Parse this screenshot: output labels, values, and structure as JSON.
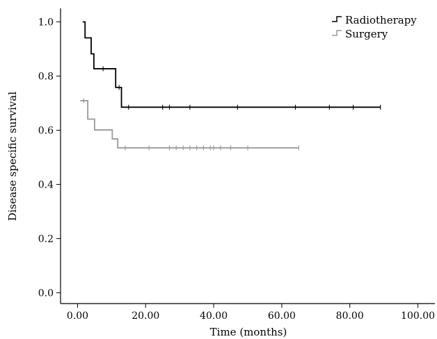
{
  "chart_data": {
    "type": "line",
    "subtype": "kaplan-meier-step",
    "xlabel": "Time (months)",
    "ylabel": "Disease specific survival",
    "xlim": [
      -5,
      105
    ],
    "ylim": [
      -0.04,
      1.05
    ],
    "xticks": [
      0,
      20,
      40,
      60,
      80,
      100
    ],
    "xtick_labels": [
      "0.00",
      "20.00",
      "40.00",
      "60.00",
      "80.00",
      "100.00"
    ],
    "yticks": [
      0,
      0.2,
      0.4,
      0.6,
      0.8,
      1.0
    ],
    "ytick_labels": [
      "0.0",
      "0.2",
      "0.4",
      "0.6",
      "0.8",
      "1.0"
    ],
    "grid": false,
    "legend_position": "top-right",
    "series": [
      {
        "name": "Radiotherapy",
        "color": "#000000",
        "steps": [
          {
            "t": 1.5,
            "s": 1.0
          },
          {
            "t": 2.2,
            "s": 0.941
          },
          {
            "t": 4.0,
            "s": 0.882
          },
          {
            "t": 4.8,
            "s": 0.827
          },
          {
            "t": 11.2,
            "s": 0.758
          },
          {
            "t": 12.9,
            "s": 0.685
          }
        ],
        "end_time": 89,
        "censored": [
          {
            "t": 7.5,
            "s": 0.827
          },
          {
            "t": 12.2,
            "s": 0.758
          },
          {
            "t": 15,
            "s": 0.685
          },
          {
            "t": 25,
            "s": 0.685
          },
          {
            "t": 27,
            "s": 0.685
          },
          {
            "t": 33,
            "s": 0.685
          },
          {
            "t": 47,
            "s": 0.685
          },
          {
            "t": 64,
            "s": 0.685
          },
          {
            "t": 74,
            "s": 0.685
          },
          {
            "t": 81,
            "s": 0.685
          },
          {
            "t": 89,
            "s": 0.685
          }
        ]
      },
      {
        "name": "Surgery",
        "color": "#999999",
        "steps": [
          {
            "t": 0.8,
            "s": 0.709
          },
          {
            "t": 3.0,
            "s": 0.641
          },
          {
            "t": 5.0,
            "s": 0.601
          },
          {
            "t": 10.2,
            "s": 0.568
          },
          {
            "t": 11.8,
            "s": 0.535
          }
        ],
        "end_time": 65,
        "censored": [
          {
            "t": 1.8,
            "s": 0.709
          },
          {
            "t": 14,
            "s": 0.535
          },
          {
            "t": 21,
            "s": 0.535
          },
          {
            "t": 27,
            "s": 0.535
          },
          {
            "t": 29,
            "s": 0.535
          },
          {
            "t": 31,
            "s": 0.535
          },
          {
            "t": 33,
            "s": 0.535
          },
          {
            "t": 35,
            "s": 0.535
          },
          {
            "t": 37,
            "s": 0.535
          },
          {
            "t": 39,
            "s": 0.535
          },
          {
            "t": 40,
            "s": 0.535
          },
          {
            "t": 42,
            "s": 0.535
          },
          {
            "t": 45,
            "s": 0.535
          },
          {
            "t": 50,
            "s": 0.535
          },
          {
            "t": 65,
            "s": 0.535
          }
        ]
      }
    ]
  }
}
